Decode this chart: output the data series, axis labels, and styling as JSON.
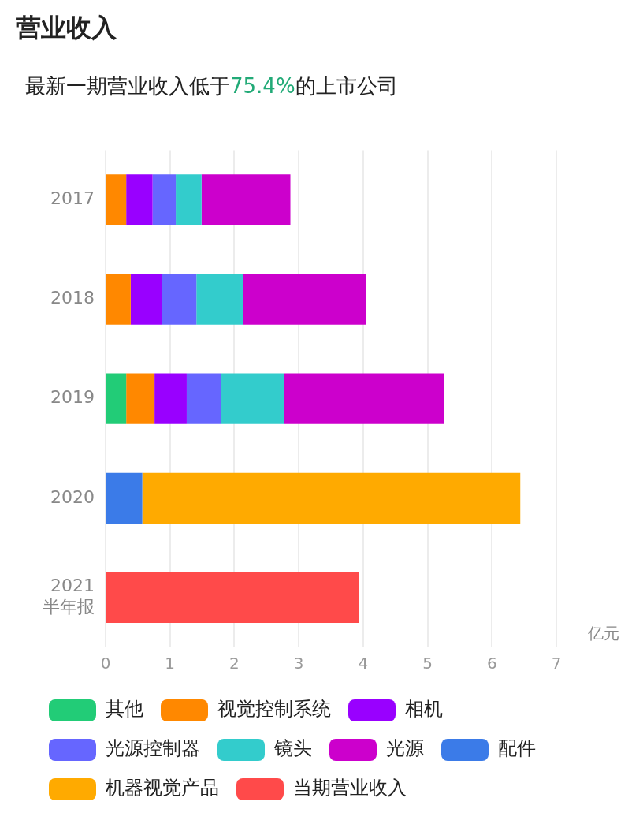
{
  "chart_data": {
    "type": "bar",
    "orientation": "horizontal",
    "stacked": true,
    "title": "营业收入",
    "subtitle": "最新一期营业收入低于75.4%的上市公司",
    "xlabel": "亿元",
    "categories": [
      "2017",
      "2018",
      "2019",
      "2020",
      "2021\n半年报"
    ],
    "series": [
      {
        "name": "其他",
        "color": "#22cc77",
        "values": [
          null,
          null,
          0.32,
          null,
          null
        ]
      },
      {
        "name": "视觉控制系统",
        "color": "#ff8800",
        "values": [
          0.32,
          0.39,
          0.44,
          null,
          null
        ]
      },
      {
        "name": "相机",
        "color": "#9900ff",
        "values": [
          0.41,
          0.49,
          0.5,
          null,
          null
        ]
      },
      {
        "name": "光源控制器",
        "color": "#6666ff",
        "values": [
          0.36,
          0.53,
          0.53,
          null,
          null
        ]
      },
      {
        "name": "镜头",
        "color": "#33cccc",
        "values": [
          0.4,
          0.72,
          0.98,
          null,
          null
        ]
      },
      {
        "name": "光源",
        "color": "#cc00cc",
        "values": [
          1.38,
          1.91,
          2.48,
          null,
          null
        ]
      },
      {
        "name": "配件",
        "color": "#3b7be8",
        "values": [
          null,
          null,
          null,
          0.57,
          null
        ]
      },
      {
        "name": "机器视觉产品",
        "color": "#ffaa00",
        "values": [
          null,
          null,
          null,
          5.87,
          null
        ]
      },
      {
        "name": "当期营业收入",
        "color": "#ff4a4a",
        "values": [
          null,
          null,
          null,
          null,
          3.93
        ]
      }
    ],
    "xlim": [
      0,
      7
    ],
    "xticks": [
      0,
      1,
      2,
      3,
      4,
      5,
      6,
      7
    ],
    "grid": "x",
    "legend": "bottom"
  }
}
